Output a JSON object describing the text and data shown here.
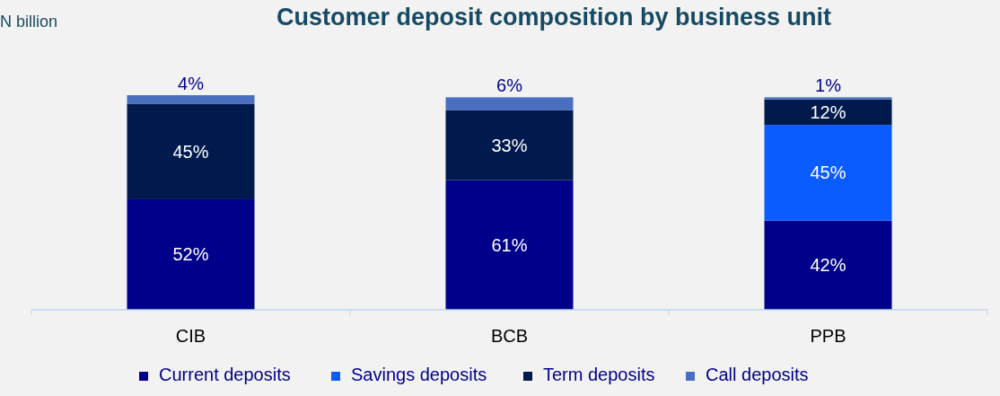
{
  "chart_data": {
    "type": "bar",
    "title": "Customer deposit composition by business unit",
    "ylabel": "N billion",
    "stacked": true,
    "legend": "bottom",
    "categories": [
      "CIB",
      "BCB",
      "PPB"
    ],
    "series": [
      {
        "name": "Current deposits",
        "color": "#00008b",
        "values": [
          52,
          61,
          42
        ],
        "value_labels": [
          "52%",
          "61%",
          "42%"
        ]
      },
      {
        "name": "Savings deposits",
        "color": "#0a5cff",
        "values": [
          null,
          null,
          45
        ],
        "value_labels": [
          null,
          null,
          "45%"
        ]
      },
      {
        "name": "Term deposits",
        "color": "#001a4d",
        "values": [
          45,
          33,
          12
        ],
        "value_labels": [
          "45%",
          "33%",
          "12%"
        ]
      },
      {
        "name": "Call deposits",
        "color": "#4a6fc0",
        "values": [
          4,
          6,
          1
        ],
        "value_labels": [
          "4%",
          "6%",
          "1%"
        ]
      }
    ]
  }
}
